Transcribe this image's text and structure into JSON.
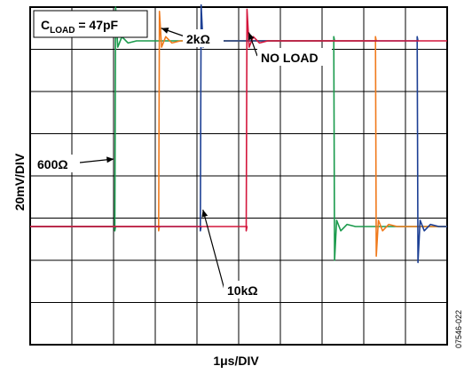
{
  "chart_data": {
    "type": "line",
    "title": "C_LOAD = 47pF",
    "title_parts": {
      "prefix": "C",
      "subscript": "LOAD",
      "suffix": " = 47pF"
    },
    "xlabel": "1μs/DIV",
    "ylabel": "20mV/DIV",
    "figure_id": "07546-022",
    "divisions": {
      "x": 10,
      "y": 8
    },
    "grid": true,
    "xlim": [
      0,
      10
    ],
    "ylim": [
      0,
      8
    ],
    "baseline_level": 2.8,
    "high_level": 7.2,
    "series": [
      {
        "label": "600Ω",
        "color": "#1a9a4c",
        "rise": 2.05,
        "fall": 7.3,
        "spike": 0.8
      },
      {
        "label": "2kΩ",
        "color": "#f07a1c",
        "rise": 3.1,
        "fall": 8.3,
        "spike": 0.7
      },
      {
        "label": "10kΩ",
        "color": "#1c3f94",
        "rise": 4.1,
        "fall": 9.3,
        "spike": 0.85
      },
      {
        "label": "NO LOAD",
        "color": "#d4163c",
        "rise": 5.2,
        "fall": 10.4,
        "spike": 0.75
      }
    ],
    "annotations": [
      {
        "text": "2kΩ"
      },
      {
        "text": "NO LOAD"
      },
      {
        "text": "600Ω"
      },
      {
        "text": "10kΩ"
      }
    ]
  }
}
